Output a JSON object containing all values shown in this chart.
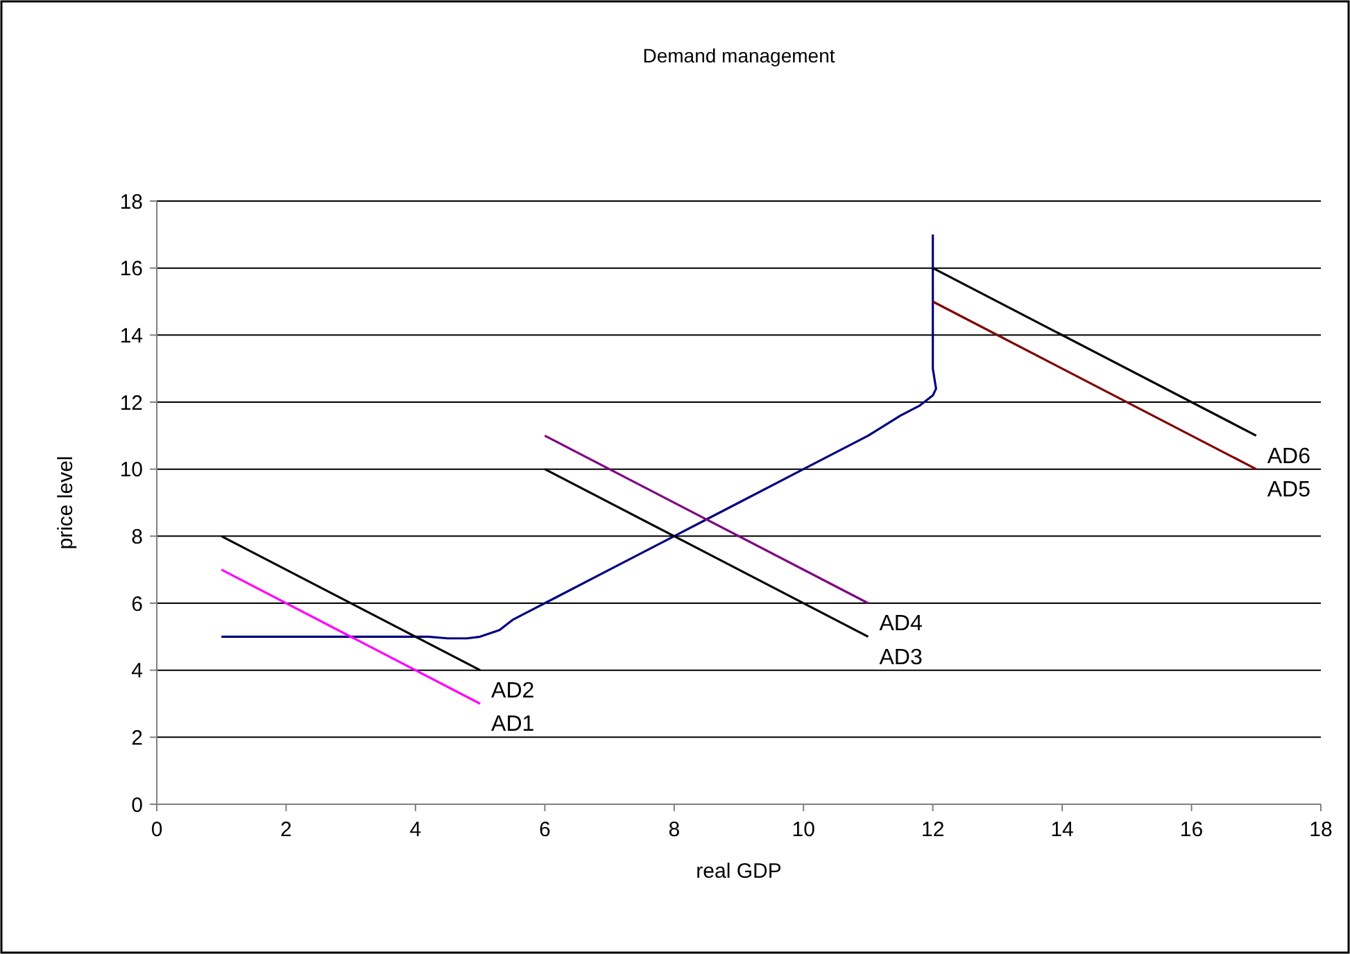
{
  "chart_data": {
    "type": "line",
    "title": "Demand management",
    "xlabel": "real GDP",
    "ylabel": "price level",
    "xlim": [
      0,
      18
    ],
    "xticks": [
      0,
      2,
      4,
      6,
      8,
      10,
      12,
      14,
      16,
      18
    ],
    "ylim": [
      0,
      18
    ],
    "yticks": [
      0,
      2,
      4,
      6,
      8,
      10,
      12,
      14,
      16,
      18
    ],
    "grid": "y",
    "series": [
      {
        "color": "#000080",
        "x": [
          1,
          4.2,
          4.5,
          4.8,
          5,
          5.3,
          5.5,
          5.8,
          6,
          7,
          8,
          9,
          10,
          11,
          11.5,
          11.8,
          12,
          12.05,
          12,
          12
        ],
        "values": [
          5,
          5,
          4.95,
          4.95,
          5,
          5.2,
          5.5,
          5.8,
          6,
          7,
          8,
          9,
          10,
          11,
          11.6,
          11.9,
          12.2,
          12.4,
          13,
          17
        ]
      },
      {
        "name": "AD1",
        "color": "#ff00ff",
        "x": [
          1,
          5
        ],
        "values": [
          7,
          3
        ]
      },
      {
        "name": "AD2",
        "color": "#000000",
        "x": [
          1,
          5
        ],
        "values": [
          8,
          4
        ]
      },
      {
        "name": "AD3",
        "color": "#000000",
        "x": [
          6,
          11
        ],
        "values": [
          10,
          5
        ]
      },
      {
        "name": "AD4",
        "color": "#800080",
        "x": [
          6,
          11
        ],
        "values": [
          11,
          6
        ]
      },
      {
        "name": "AD5",
        "color": "#800000",
        "x": [
          12,
          17
        ],
        "values": [
          15,
          10
        ]
      },
      {
        "name": "AD6",
        "color": "#000000",
        "x": [
          12,
          17
        ],
        "values": [
          16,
          11
        ]
      }
    ]
  }
}
